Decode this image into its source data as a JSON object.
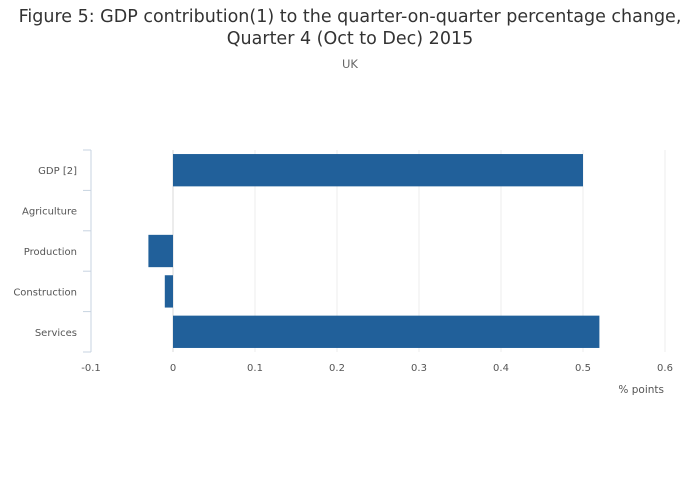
{
  "chart_data": {
    "type": "bar",
    "orientation": "horizontal",
    "title_line1": "Figure 5: GDP contribution(1) to the quarter-on-quarter percentage change,",
    "title_line2": "Quarter 4 (Oct to Dec) 2015",
    "subtitle": "UK",
    "categories": [
      "GDP [2]",
      "Agriculture",
      "Production",
      "Construction",
      "Services"
    ],
    "values": [
      0.5,
      0.0,
      -0.03,
      -0.01,
      0.52
    ],
    "xlabel": "% points",
    "xlim": [
      -0.1,
      0.6
    ],
    "xticks": [
      "-0.1",
      "0",
      "0.1",
      "0.2",
      "0.3",
      "0.4",
      "0.5",
      "0.6"
    ],
    "grid": true,
    "bar_color": "#21609a"
  }
}
